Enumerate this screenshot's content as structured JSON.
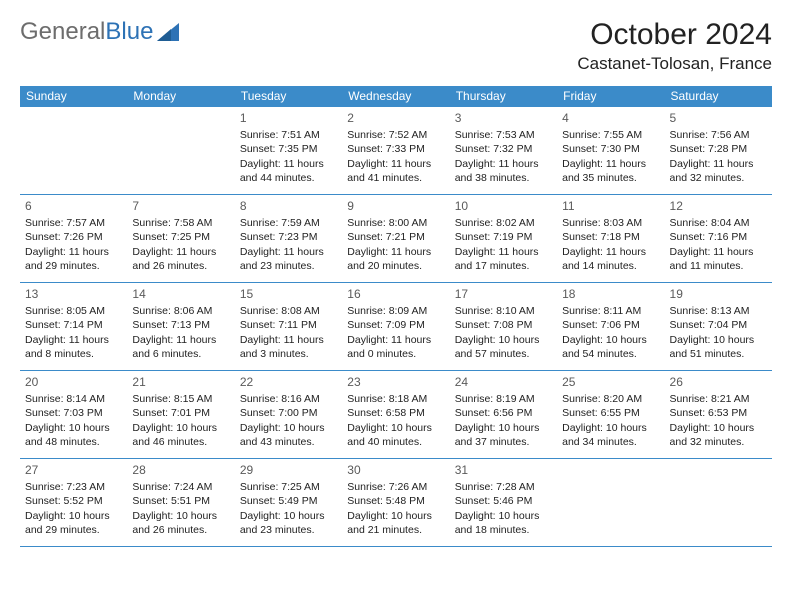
{
  "header": {
    "logo_general": "General",
    "logo_blue": "Blue",
    "month_title": "October 2024",
    "location": "Castanet-Tolosan, France"
  },
  "colors": {
    "header_bg": "#3b8bc9",
    "header_text": "#ffffff",
    "border": "#3b8bc9",
    "logo_gray": "#6d6d6d",
    "logo_blue": "#2d72b5",
    "text": "#222222",
    "daynum": "#5a5a5a",
    "background": "#ffffff"
  },
  "day_headers": [
    "Sunday",
    "Monday",
    "Tuesday",
    "Wednesday",
    "Thursday",
    "Friday",
    "Saturday"
  ],
  "weeks": [
    [
      null,
      null,
      {
        "n": "1",
        "sr": "7:51 AM",
        "ss": "7:35 PM",
        "dl": "11 hours and 44 minutes."
      },
      {
        "n": "2",
        "sr": "7:52 AM",
        "ss": "7:33 PM",
        "dl": "11 hours and 41 minutes."
      },
      {
        "n": "3",
        "sr": "7:53 AM",
        "ss": "7:32 PM",
        "dl": "11 hours and 38 minutes."
      },
      {
        "n": "4",
        "sr": "7:55 AM",
        "ss": "7:30 PM",
        "dl": "11 hours and 35 minutes."
      },
      {
        "n": "5",
        "sr": "7:56 AM",
        "ss": "7:28 PM",
        "dl": "11 hours and 32 minutes."
      }
    ],
    [
      {
        "n": "6",
        "sr": "7:57 AM",
        "ss": "7:26 PM",
        "dl": "11 hours and 29 minutes."
      },
      {
        "n": "7",
        "sr": "7:58 AM",
        "ss": "7:25 PM",
        "dl": "11 hours and 26 minutes."
      },
      {
        "n": "8",
        "sr": "7:59 AM",
        "ss": "7:23 PM",
        "dl": "11 hours and 23 minutes."
      },
      {
        "n": "9",
        "sr": "8:00 AM",
        "ss": "7:21 PM",
        "dl": "11 hours and 20 minutes."
      },
      {
        "n": "10",
        "sr": "8:02 AM",
        "ss": "7:19 PM",
        "dl": "11 hours and 17 minutes."
      },
      {
        "n": "11",
        "sr": "8:03 AM",
        "ss": "7:18 PM",
        "dl": "11 hours and 14 minutes."
      },
      {
        "n": "12",
        "sr": "8:04 AM",
        "ss": "7:16 PM",
        "dl": "11 hours and 11 minutes."
      }
    ],
    [
      {
        "n": "13",
        "sr": "8:05 AM",
        "ss": "7:14 PM",
        "dl": "11 hours and 8 minutes."
      },
      {
        "n": "14",
        "sr": "8:06 AM",
        "ss": "7:13 PM",
        "dl": "11 hours and 6 minutes."
      },
      {
        "n": "15",
        "sr": "8:08 AM",
        "ss": "7:11 PM",
        "dl": "11 hours and 3 minutes."
      },
      {
        "n": "16",
        "sr": "8:09 AM",
        "ss": "7:09 PM",
        "dl": "11 hours and 0 minutes."
      },
      {
        "n": "17",
        "sr": "8:10 AM",
        "ss": "7:08 PM",
        "dl": "10 hours and 57 minutes."
      },
      {
        "n": "18",
        "sr": "8:11 AM",
        "ss": "7:06 PM",
        "dl": "10 hours and 54 minutes."
      },
      {
        "n": "19",
        "sr": "8:13 AM",
        "ss": "7:04 PM",
        "dl": "10 hours and 51 minutes."
      }
    ],
    [
      {
        "n": "20",
        "sr": "8:14 AM",
        "ss": "7:03 PM",
        "dl": "10 hours and 48 minutes."
      },
      {
        "n": "21",
        "sr": "8:15 AM",
        "ss": "7:01 PM",
        "dl": "10 hours and 46 minutes."
      },
      {
        "n": "22",
        "sr": "8:16 AM",
        "ss": "7:00 PM",
        "dl": "10 hours and 43 minutes."
      },
      {
        "n": "23",
        "sr": "8:18 AM",
        "ss": "6:58 PM",
        "dl": "10 hours and 40 minutes."
      },
      {
        "n": "24",
        "sr": "8:19 AM",
        "ss": "6:56 PM",
        "dl": "10 hours and 37 minutes."
      },
      {
        "n": "25",
        "sr": "8:20 AM",
        "ss": "6:55 PM",
        "dl": "10 hours and 34 minutes."
      },
      {
        "n": "26",
        "sr": "8:21 AM",
        "ss": "6:53 PM",
        "dl": "10 hours and 32 minutes."
      }
    ],
    [
      {
        "n": "27",
        "sr": "7:23 AM",
        "ss": "5:52 PM",
        "dl": "10 hours and 29 minutes."
      },
      {
        "n": "28",
        "sr": "7:24 AM",
        "ss": "5:51 PM",
        "dl": "10 hours and 26 minutes."
      },
      {
        "n": "29",
        "sr": "7:25 AM",
        "ss": "5:49 PM",
        "dl": "10 hours and 23 minutes."
      },
      {
        "n": "30",
        "sr": "7:26 AM",
        "ss": "5:48 PM",
        "dl": "10 hours and 21 minutes."
      },
      {
        "n": "31",
        "sr": "7:28 AM",
        "ss": "5:46 PM",
        "dl": "10 hours and 18 minutes."
      },
      null,
      null
    ]
  ],
  "labels": {
    "sunrise": "Sunrise:",
    "sunset": "Sunset:",
    "daylight": "Daylight:"
  }
}
